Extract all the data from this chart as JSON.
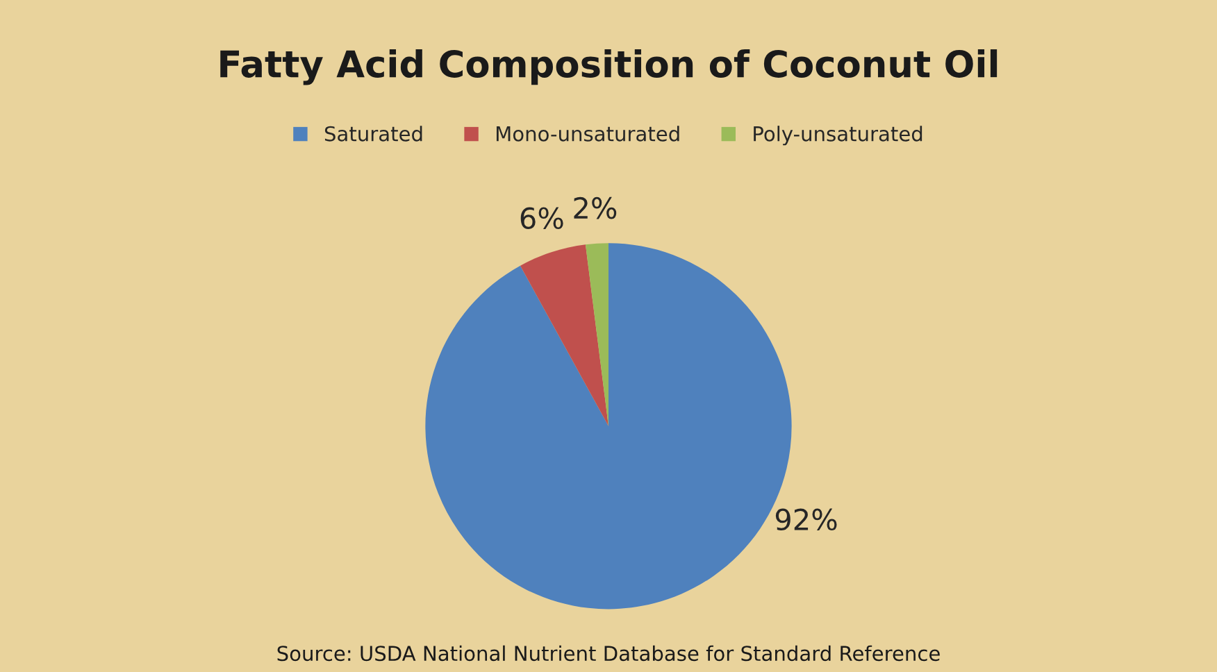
{
  "chart_data": {
    "type": "pie",
    "title": "Fatty Acid Composition of Coconut Oil",
    "categories": [
      "Saturated",
      "Mono-unsaturated",
      "Poly-unsaturated"
    ],
    "values": [
      92,
      6,
      2
    ],
    "colors": [
      "#4f81bd",
      "#c0504d",
      "#9bbb59"
    ],
    "value_labels": [
      "92%",
      "6%",
      "2%"
    ],
    "legend": "top",
    "annotations": [
      "Source: USDA National Nutrient Database for Standard Reference"
    ]
  }
}
